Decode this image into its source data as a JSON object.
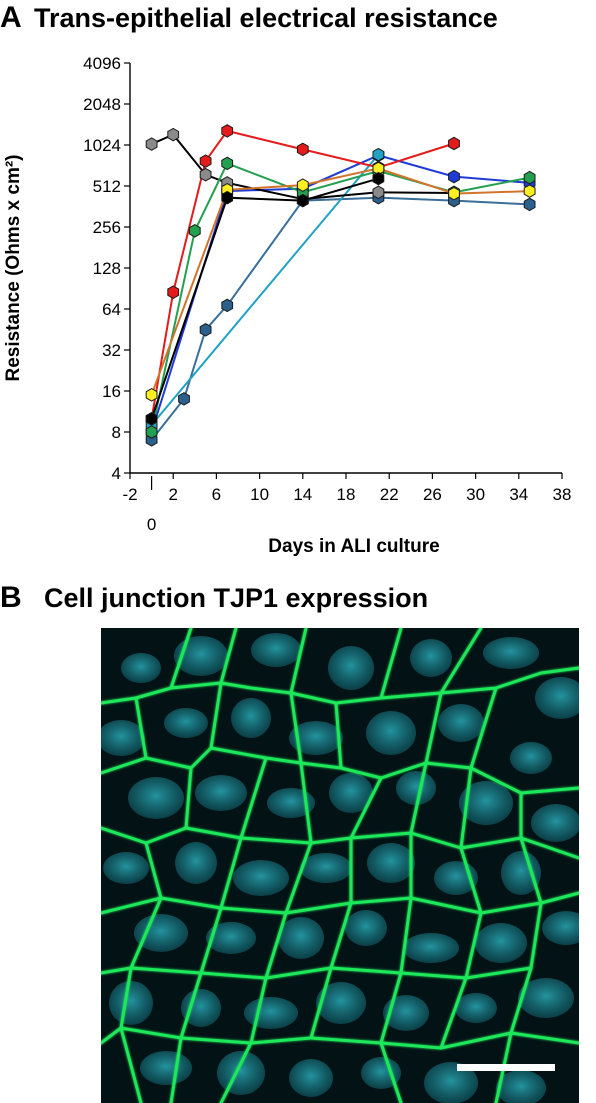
{
  "panel_a": {
    "letter": "A",
    "title": "Trans-epithelial electrical resistance"
  },
  "panel_b": {
    "letter": "B",
    "title": "Cell junction TJP1 expression"
  },
  "chart_data": {
    "type": "line",
    "title": "Trans-epithelial electrical resistance",
    "xlabel": "Days in ALI culture",
    "ylabel": "Resistance (Ohms x cm²)",
    "xlim": [
      -2,
      38
    ],
    "ylim": [
      4,
      4096
    ],
    "yscale": "log2",
    "x_ticks": [
      -2,
      2,
      6,
      10,
      14,
      18,
      22,
      26,
      30,
      34,
      38
    ],
    "x_tick_labels": [
      "-2",
      "2",
      "6",
      "10",
      "14",
      "18",
      "22",
      "26",
      "30",
      "34",
      "38"
    ],
    "x_extra_tick": {
      "value": 0,
      "label": "0"
    },
    "y_ticks": [
      4,
      8,
      16,
      32,
      64,
      128,
      256,
      512,
      1024,
      2048,
      4096
    ],
    "y_tick_labels": [
      "4",
      "8",
      "16",
      "32",
      "64",
      "128",
      "256",
      "512",
      "1024",
      "2048",
      "4096"
    ],
    "grid": false,
    "legend": "none",
    "series": [
      {
        "color": "#2b5f8c",
        "line": "#3a6f9a",
        "x": [
          0,
          3,
          5,
          7,
          14,
          21,
          28,
          35
        ],
        "y": [
          7,
          14,
          45,
          68,
          400,
          420,
          400,
          375
        ]
      },
      {
        "color": "#1f3bd6",
        "line": "#1f3bd6",
        "x": [
          0,
          7,
          14,
          21,
          28,
          35
        ],
        "y": [
          8,
          470,
          490,
          860,
          600,
          540
        ]
      },
      {
        "color": "#21a1c4",
        "line": "#21a1c4",
        "x": [
          0,
          21
        ],
        "y": [
          9,
          870
        ]
      },
      {
        "color": "#8a8a8a",
        "line": "#000000",
        "x": [
          0,
          2,
          5,
          7,
          14,
          21,
          28
        ],
        "y": [
          1040,
          1220,
          620,
          540,
          410,
          460,
          455
        ]
      },
      {
        "color": "#e31b1b",
        "line": "#e31b1b",
        "x": [
          0,
          2,
          5,
          7,
          14,
          21,
          28
        ],
        "y": [
          10,
          85,
          780,
          1300,
          950,
          700,
          1050
        ]
      },
      {
        "color": "#22a050",
        "line": "#22a050",
        "x": [
          0,
          4,
          7,
          14,
          21,
          28,
          35
        ],
        "y": [
          8,
          240,
          750,
          460,
          660,
          460,
          590
        ]
      },
      {
        "color": "#ffee22",
        "line": "#d2742b",
        "x": [
          0,
          7,
          14,
          21,
          28,
          35
        ],
        "y": [
          15,
          480,
          520,
          690,
          450,
          470
        ]
      },
      {
        "color": "#000000",
        "line": "#000000",
        "x": [
          0,
          7,
          14,
          21
        ],
        "y": [
          10,
          420,
          400,
          580
        ]
      }
    ]
  },
  "micrograph": {
    "stain_color": "#1ee85a",
    "nuclei_color": "#1d9aa8",
    "background": "#031214",
    "scale_bar_color": "#ffffff"
  }
}
